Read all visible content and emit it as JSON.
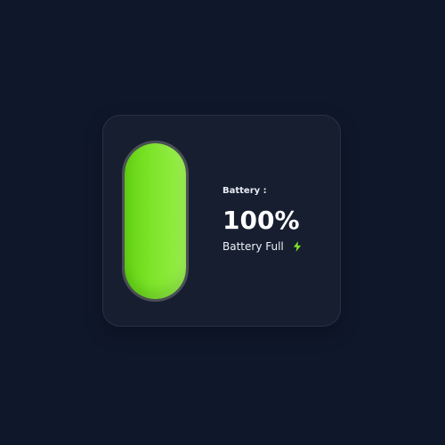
{
  "battery": {
    "label": "Battery :",
    "percent_text": "100%",
    "level_fraction": 1.0,
    "status_text": "Battery Full",
    "status_icon": "lightning-bolt-icon",
    "fill_color": "#7ee52a",
    "icon_color": "#7ee52a"
  },
  "colors": {
    "background": "#0f172a",
    "card": "#161e30",
    "text": "#ffffff"
  }
}
